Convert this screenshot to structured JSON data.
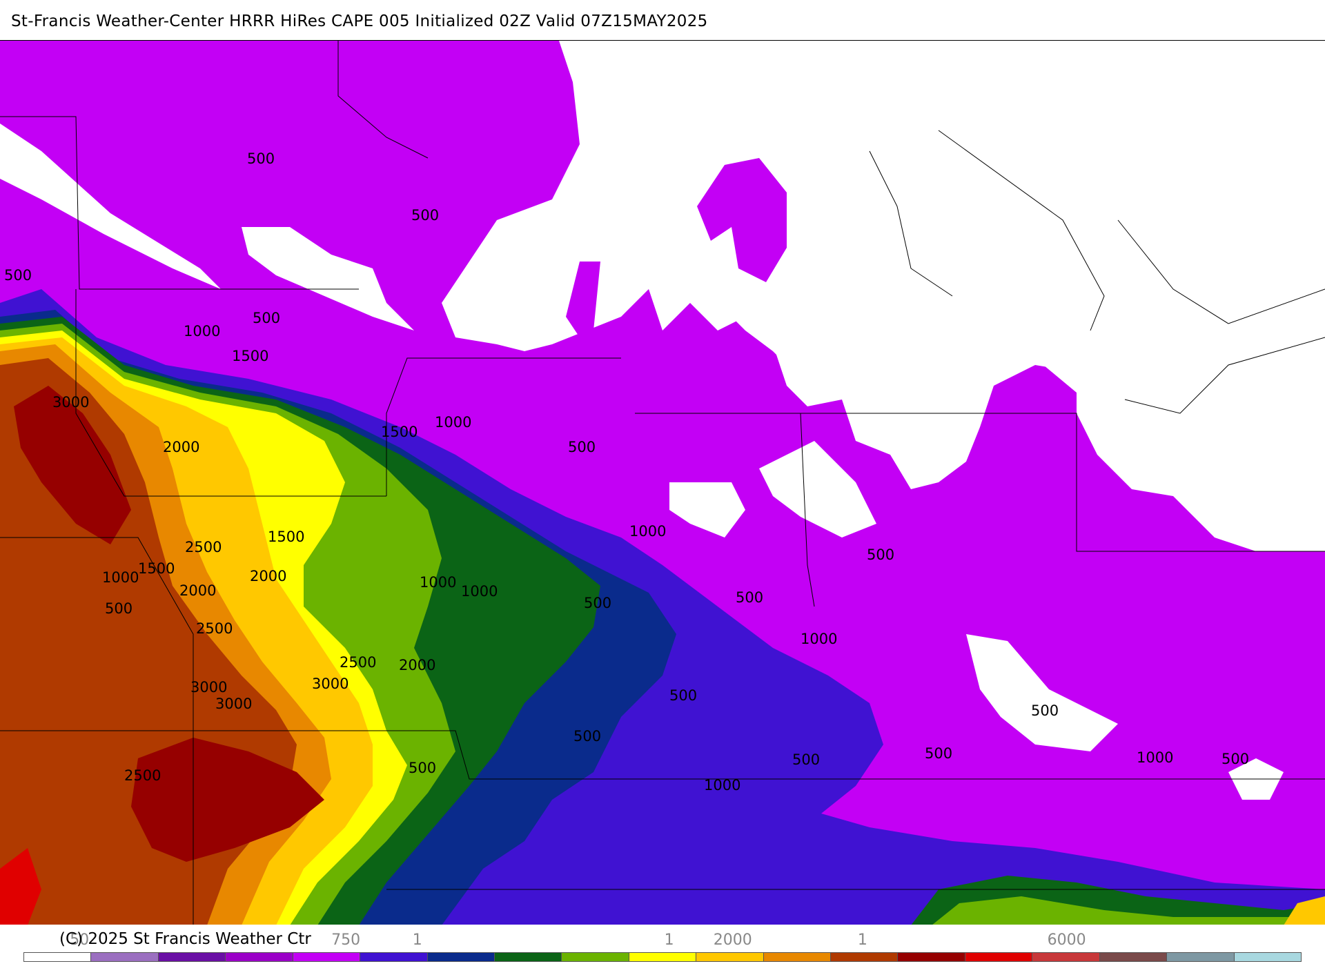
{
  "header": {
    "title": "St-Francis Weather-Center HRRR HiRes CAPE  005 Initialized  02Z Valid 07Z15MAY2025"
  },
  "footer": {
    "copyright": "(C) 2025 St Francis Weather Ctr",
    "legend_ticks": [
      {
        "label": "50",
        "pos": 0.06
      },
      {
        "label": "750",
        "pos": 0.261
      },
      {
        "label": "1",
        "pos": 0.315
      },
      {
        "label": "1",
        "pos": 0.505
      },
      {
        "label": "2000",
        "pos": 0.553
      },
      {
        "label": "1",
        "pos": 0.651
      },
      {
        "label": "6000",
        "pos": 0.805
      }
    ],
    "legend_colors": [
      "#ffffff",
      "#9b6fc0",
      "#6a0fa5",
      "#9b00c8",
      "#c300f5",
      "#4012d2",
      "#0a2b8c",
      "#0b6416",
      "#6bb300",
      "#ffff00",
      "#ffc800",
      "#e88800",
      "#b03a00",
      "#960000",
      "#e00000",
      "#c8383a",
      "#7a4a4a",
      "#7e98a3",
      "#a8d8e0"
    ]
  },
  "map": {
    "product": "CAPE",
    "colors": {
      "c250": "#c300f5",
      "c500": "#4012d2",
      "c750": "#0a2b8c",
      "c1000": "#0b6416",
      "c1250": "#6bb300",
      "c1500": "#ffff00",
      "c1750": "#ffc800",
      "c2000": "#e88800",
      "c2500": "#b03a00",
      "c3000": "#960000",
      "c3500": "#e00000",
      "edge": "#9b6fc0"
    },
    "labels": [
      {
        "text": "500",
        "id": "l1"
      },
      {
        "text": "500",
        "id": "l2"
      },
      {
        "text": "500",
        "id": "l3"
      },
      {
        "text": "500",
        "id": "l4"
      },
      {
        "text": "1000",
        "id": "l5"
      },
      {
        "text": "1500",
        "id": "l6"
      },
      {
        "text": "3000",
        "id": "l7"
      },
      {
        "text": "2000",
        "id": "l8"
      },
      {
        "text": "1000",
        "id": "l9"
      },
      {
        "text": "1500",
        "id": "l10"
      },
      {
        "text": "500",
        "id": "l11"
      },
      {
        "text": "1000",
        "id": "l12"
      },
      {
        "text": "1500",
        "id": "l13"
      },
      {
        "text": "2500",
        "id": "l14"
      },
      {
        "text": "1500",
        "id": "l15"
      },
      {
        "text": "1000",
        "id": "l16"
      },
      {
        "text": "2000",
        "id": "l17"
      },
      {
        "text": "2000",
        "id": "l18"
      },
      {
        "text": "500",
        "id": "l19"
      },
      {
        "text": "1000",
        "id": "l20"
      },
      {
        "text": "1000",
        "id": "l21"
      },
      {
        "text": "2500",
        "id": "l22"
      },
      {
        "text": "500",
        "id": "l23"
      },
      {
        "text": "500",
        "id": "l24"
      },
      {
        "text": "1000",
        "id": "l25"
      },
      {
        "text": "500",
        "id": "l26"
      },
      {
        "text": "2500",
        "id": "l27"
      },
      {
        "text": "2000",
        "id": "l28"
      },
      {
        "text": "3000",
        "id": "l29"
      },
      {
        "text": "3000",
        "id": "l30"
      },
      {
        "text": "3000",
        "id": "l31"
      },
      {
        "text": "500",
        "id": "l32"
      },
      {
        "text": "500",
        "id": "l33"
      },
      {
        "text": "500",
        "id": "l34"
      },
      {
        "text": "500",
        "id": "l35"
      },
      {
        "text": "500",
        "id": "l36"
      },
      {
        "text": "1000",
        "id": "l37"
      },
      {
        "text": "500",
        "id": "l38"
      },
      {
        "text": "2500",
        "id": "l39"
      },
      {
        "text": "1000",
        "id": "l40"
      },
      {
        "text": "500",
        "id": "l41"
      }
    ]
  }
}
